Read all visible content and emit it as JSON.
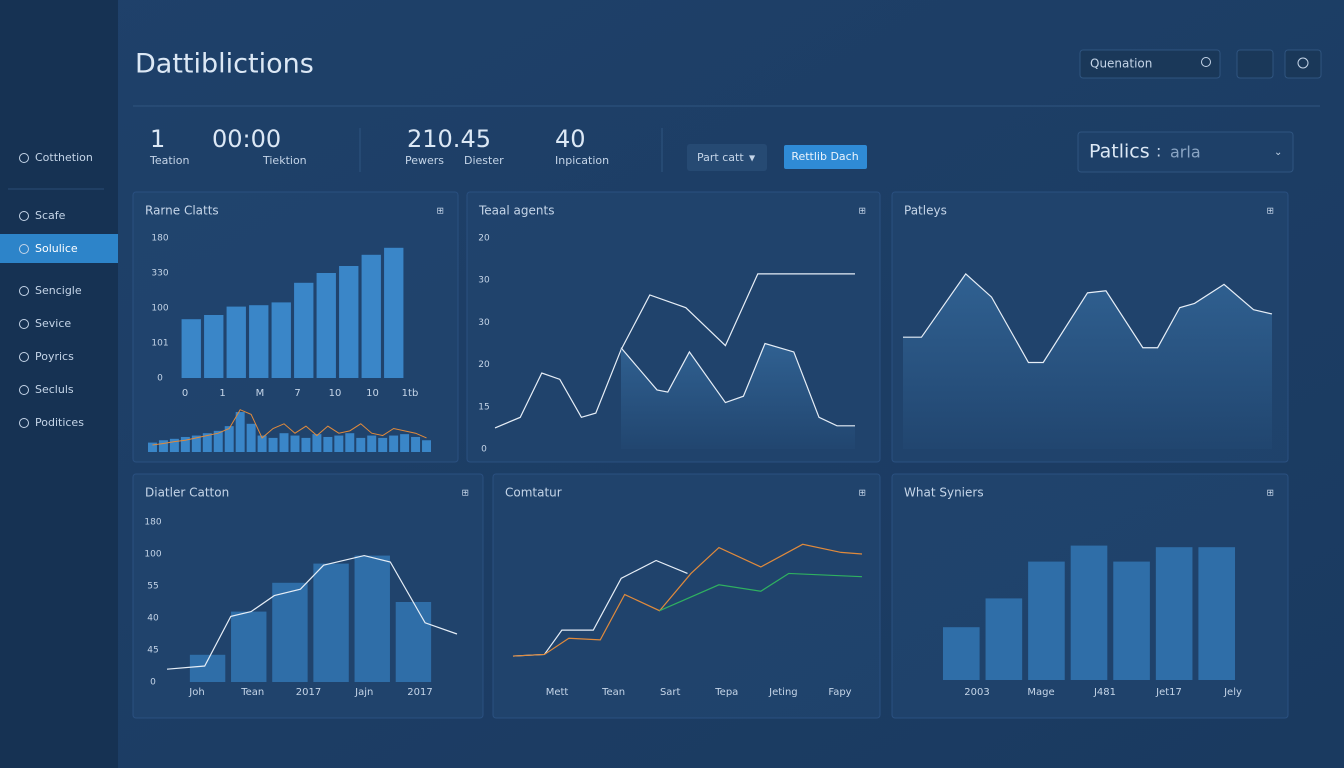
{
  "sidebar": {
    "items": [
      "Cotthetion",
      "Scafe",
      "Solulice",
      "Sencigle",
      "Sevice",
      "Poyrics",
      "Secluls",
      "Poditices"
    ],
    "active": 2
  },
  "header": {
    "title": "Dattiblictions",
    "search": "Quenation"
  },
  "stats": [
    {
      "value": 1,
      "labels": [
        "Teation"
      ]
    },
    {
      "value": "00:00",
      "labels": [
        "Tiektion"
      ]
    },
    {
      "value": 210.45,
      "labels": [
        "Pewers",
        "Diester"
      ]
    },
    {
      "value": 40,
      "labels": [
        "Inpication"
      ]
    }
  ],
  "controls": {
    "dropdown": "Part catt",
    "button": "Rettlib Dach",
    "select": "Patlics",
    "select_value": "arla"
  },
  "panels": [
    {
      "title": "Rarne Clatts",
      "chart": {
        "type": "bar",
        "y_labels": [
          "180",
          "330",
          "100",
          "101",
          "0"
        ],
        "x_labels": [
          "0",
          "1",
          "M",
          "7",
          "10",
          "10",
          "1tb"
        ],
        "ylim": [
          0,
          100
        ],
        "color": "#3a86c8",
        "values": [
          42,
          45,
          51,
          52,
          54,
          68,
          75,
          80,
          88,
          93
        ],
        "mini": {
          "values": [
            20,
            25,
            28,
            32,
            35,
            40,
            45,
            55,
            85,
            60,
            35,
            30,
            40,
            35,
            30,
            38,
            32,
            35,
            40,
            30,
            35,
            30,
            35,
            38,
            32,
            25
          ],
          "line": [
            15,
            18,
            22,
            25,
            30,
            35,
            40,
            50,
            90,
            80,
            30,
            50,
            60,
            40,
            55,
            35,
            55,
            40,
            45,
            60,
            40,
            35,
            50,
            45,
            40,
            30
          ],
          "line_color": "#e08a3c"
        }
      }
    },
    {
      "title": "Teaal agents",
      "chart": {
        "type": "line",
        "y_labels": [
          "20",
          "30",
          "30",
          "20",
          "15",
          "0"
        ],
        "ylim": [
          0,
          100
        ],
        "xlim": [
          0,
          100
        ],
        "series": [
          {
            "color": "#e6eef7",
            "fill": false,
            "x": [
              0,
              7,
              13,
              18,
              24,
              28,
              35,
              43,
              53,
              64,
              73,
              100
            ],
            "values": [
              10,
              15,
              36,
              33,
              15,
              17,
              47,
              73,
              67,
              49,
              83,
              83
            ]
          },
          {
            "color": "#e6eef7",
            "fill": true,
            "x": [
              35,
              45,
              48,
              54,
              64,
              69,
              75,
              83,
              90,
              95,
              100
            ],
            "values": [
              48,
              28,
              27,
              46,
              22,
              25,
              50,
              46,
              15,
              11,
              11
            ]
          }
        ]
      }
    },
    {
      "title": "Patleys",
      "chart": {
        "type": "line",
        "ylim": [
          0,
          100
        ],
        "xlim": [
          0,
          100
        ],
        "series": [
          {
            "color": "#e6eef7",
            "fill": true,
            "x": [
              0,
              5,
              17,
              24,
              34,
              38,
              50,
              55,
              65,
              69,
              75,
              79,
              87,
              95,
              100
            ],
            "values": [
              53,
              53,
              83,
              72,
              41,
              41,
              74,
              75,
              48,
              48,
              67,
              69,
              78,
              66,
              64
            ]
          }
        ]
      }
    },
    {
      "title": "Diatler Catton",
      "chart": {
        "type": "bar_line",
        "y_labels": [
          "180",
          "100",
          "55",
          "40",
          "45",
          "0"
        ],
        "x_labels": [
          "Joh",
          "Tean",
          "2017",
          "Jajn",
          "2017"
        ],
        "ylim": [
          0,
          100
        ],
        "xlim": [
          0,
          100
        ],
        "color": "#2f6ea8",
        "values": [
          17,
          44,
          62,
          74,
          79,
          50
        ],
        "line": {
          "color": "#e6eef7",
          "x": [
            0,
            13,
            22,
            29,
            37,
            46,
            54,
            68,
            77,
            89,
            100
          ],
          "values": [
            8,
            10,
            41,
            44,
            54,
            58,
            73,
            79,
            75,
            37,
            30
          ]
        }
      }
    },
    {
      "title": "Comtatur",
      "chart": {
        "type": "line",
        "x_labels": [
          "Mett",
          "Tean",
          "Sart",
          "Tepa",
          "Jeting",
          "Fapy"
        ],
        "ylim": [
          0,
          100
        ],
        "xlim": [
          0,
          100
        ],
        "series": [
          {
            "color": "#e6eef7",
            "fill": false,
            "x": [
              0,
              9,
              14,
              23,
              31,
              41,
              50
            ],
            "values": [
              16,
              17,
              32,
              32,
              64,
              75,
              67
            ]
          },
          {
            "color": "#e08a3c",
            "fill": false,
            "x": [
              0,
              9,
              16,
              25,
              32,
              42,
              51,
              59,
              71,
              83,
              94,
              100
            ],
            "values": [
              16,
              17,
              27,
              26,
              54,
              44,
              67,
              83,
              71,
              85,
              80,
              79
            ]
          },
          {
            "color": "#2fb060",
            "fill": false,
            "x": [
              42,
              59,
              71,
              79,
              100
            ],
            "values": [
              44,
              60,
              56,
              67,
              65
            ]
          }
        ]
      }
    },
    {
      "title": "What Syniers",
      "chart": {
        "type": "bar",
        "x_labels": [
          "2003",
          "Mage",
          "J481",
          "Jet17",
          "Jely"
        ],
        "ylim": [
          0,
          100
        ],
        "color": "#2f6ea8",
        "values": [
          33,
          51,
          74,
          84,
          74,
          83,
          83
        ]
      }
    }
  ]
}
